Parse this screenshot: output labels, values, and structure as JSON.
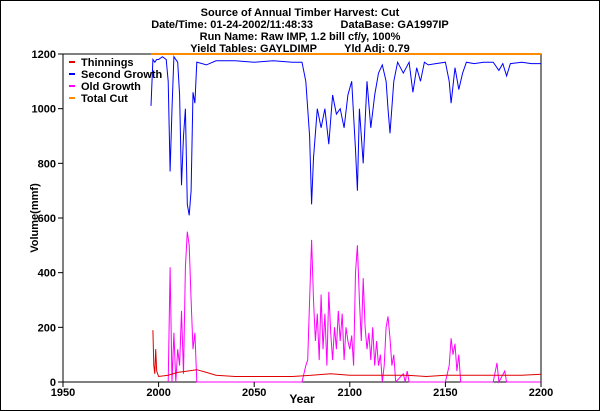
{
  "header": {
    "title": "Source of Annual Timber Harvest: Cut",
    "line2": "Date/Time: 01-24-2002/11:48:33         DataBase: GA1997IP",
    "line3": "Run Name: Raw IMP, 1.2 bill cf/y, 100%",
    "line4": "Yield Tables: GAYLDIMP         Yld Adj: 0.79"
  },
  "colors": {
    "background": "#ffffff",
    "thinnings": "#e00000",
    "second_growth": "#0000ff",
    "old_growth": "#ff00ff",
    "total_cut": "#ff8c00"
  },
  "chart_data": {
    "type": "line",
    "title": "Source of Annual Timber Harvest: Cut",
    "xlabel": "Year",
    "ylabel": "Volume(mmf)",
    "xlim": [
      1950,
      2200
    ],
    "ylim": [
      0,
      1200
    ],
    "xticks": [
      1950,
      2000,
      2050,
      2100,
      2150,
      2200
    ],
    "yticks": [
      0,
      200,
      400,
      600,
      800,
      1000,
      1200
    ],
    "grid": false,
    "legend_position": "top-left",
    "series": [
      {
        "name": "Thinnings",
        "color": "#e00000",
        "points": [
          [
            1997,
            190
          ],
          [
            1997.5,
            60
          ],
          [
            1998,
            30
          ],
          [
            1998.5,
            120
          ],
          [
            1999,
            40
          ],
          [
            2000,
            20
          ],
          [
            2005,
            25
          ],
          [
            2010,
            35
          ],
          [
            2015,
            40
          ],
          [
            2020,
            45
          ],
          [
            2025,
            35
          ],
          [
            2030,
            25
          ],
          [
            2040,
            20
          ],
          [
            2050,
            20
          ],
          [
            2060,
            20
          ],
          [
            2070,
            20
          ],
          [
            2080,
            25
          ],
          [
            2090,
            30
          ],
          [
            2100,
            25
          ],
          [
            2110,
            25
          ],
          [
            2120,
            25
          ],
          [
            2130,
            25
          ],
          [
            2140,
            20
          ],
          [
            2150,
            25
          ],
          [
            2160,
            25
          ],
          [
            2170,
            25
          ],
          [
            2180,
            25
          ],
          [
            2190,
            25
          ],
          [
            2200,
            28
          ]
        ]
      },
      {
        "name": "Second Growth",
        "color": "#0000ff",
        "points": [
          [
            1996,
            1010
          ],
          [
            1997,
            1180
          ],
          [
            1998,
            1170
          ],
          [
            1999,
            1180
          ],
          [
            2000,
            1180
          ],
          [
            2002,
            1190
          ],
          [
            2004,
            1180
          ],
          [
            2005,
            1100
          ],
          [
            2006,
            770
          ],
          [
            2007,
            1000
          ],
          [
            2008,
            1190
          ],
          [
            2010,
            1170
          ],
          [
            2011,
            1050
          ],
          [
            2012,
            720
          ],
          [
            2013,
            900
          ],
          [
            2014,
            1000
          ],
          [
            2015,
            650
          ],
          [
            2016,
            610
          ],
          [
            2017,
            700
          ],
          [
            2018,
            1060
          ],
          [
            2019,
            1020
          ],
          [
            2020,
            1170
          ],
          [
            2025,
            1160
          ],
          [
            2030,
            1175
          ],
          [
            2040,
            1175
          ],
          [
            2050,
            1170
          ],
          [
            2060,
            1175
          ],
          [
            2070,
            1170
          ],
          [
            2075,
            1170
          ],
          [
            2077,
            1100
          ],
          [
            2079,
            900
          ],
          [
            2080,
            650
          ],
          [
            2081,
            820
          ],
          [
            2083,
            1000
          ],
          [
            2085,
            930
          ],
          [
            2087,
            1000
          ],
          [
            2089,
            870
          ],
          [
            2091,
            1050
          ],
          [
            2093,
            980
          ],
          [
            2095,
            1000
          ],
          [
            2097,
            930
          ],
          [
            2099,
            1050
          ],
          [
            2101,
            1100
          ],
          [
            2103,
            850
          ],
          [
            2104,
            700
          ],
          [
            2105,
            1000
          ],
          [
            2107,
            800
          ],
          [
            2109,
            1100
          ],
          [
            2111,
            930
          ],
          [
            2113,
            1050
          ],
          [
            2115,
            1130
          ],
          [
            2117,
            1160
          ],
          [
            2119,
            1100
          ],
          [
            2120,
            1000
          ],
          [
            2121,
            910
          ],
          [
            2123,
            1100
          ],
          [
            2125,
            1170
          ],
          [
            2128,
            1130
          ],
          [
            2131,
            1170
          ],
          [
            2133,
            1060
          ],
          [
            2135,
            1150
          ],
          [
            2137,
            1100
          ],
          [
            2139,
            1170
          ],
          [
            2141,
            1160
          ],
          [
            2145,
            1165
          ],
          [
            2150,
            1170
          ],
          [
            2152,
            1100
          ],
          [
            2153,
            1020
          ],
          [
            2155,
            1150
          ],
          [
            2157,
            1070
          ],
          [
            2159,
            1130
          ],
          [
            2161,
            1170
          ],
          [
            2165,
            1165
          ],
          [
            2170,
            1170
          ],
          [
            2175,
            1170
          ],
          [
            2178,
            1140
          ],
          [
            2180,
            1165
          ],
          [
            2182,
            1120
          ],
          [
            2184,
            1165
          ],
          [
            2190,
            1170
          ],
          [
            2195,
            1165
          ],
          [
            2200,
            1165
          ]
        ]
      },
      {
        "name": "Old Growth",
        "color": "#ff00ff",
        "points": [
          [
            2005,
            0
          ],
          [
            2006,
            420
          ],
          [
            2007,
            0
          ],
          [
            2008,
            180
          ],
          [
            2009,
            0
          ],
          [
            2010,
            120
          ],
          [
            2011,
            60
          ],
          [
            2012,
            260
          ],
          [
            2013,
            30
          ],
          [
            2014,
            420
          ],
          [
            2015,
            550
          ],
          [
            2016,
            500
          ],
          [
            2017,
            300
          ],
          [
            2018,
            120
          ],
          [
            2019,
            180
          ],
          [
            2020,
            0
          ],
          [
            2075,
            0
          ],
          [
            2077,
            60
          ],
          [
            2078,
            80
          ],
          [
            2079,
            300
          ],
          [
            2080,
            520
          ],
          [
            2081,
            300
          ],
          [
            2082,
            150
          ],
          [
            2083,
            250
          ],
          [
            2084,
            80
          ],
          [
            2085,
            320
          ],
          [
            2086,
            120
          ],
          [
            2087,
            250
          ],
          [
            2088,
            60
          ],
          [
            2089,
            330
          ],
          [
            2090,
            180
          ],
          [
            2091,
            80
          ],
          [
            2092,
            200
          ],
          [
            2093,
            120
          ],
          [
            2094,
            260
          ],
          [
            2095,
            150
          ],
          [
            2096,
            250
          ],
          [
            2097,
            80
          ],
          [
            2098,
            200
          ],
          [
            2099,
            150
          ],
          [
            2100,
            120
          ],
          [
            2101,
            170
          ],
          [
            2102,
            60
          ],
          [
            2103,
            400
          ],
          [
            2104,
            500
          ],
          [
            2105,
            300
          ],
          [
            2106,
            150
          ],
          [
            2107,
            380
          ],
          [
            2108,
            200
          ],
          [
            2109,
            120
          ],
          [
            2110,
            180
          ],
          [
            2111,
            80
          ],
          [
            2112,
            200
          ],
          [
            2113,
            60
          ],
          [
            2114,
            150
          ],
          [
            2115,
            60
          ],
          [
            2116,
            100
          ],
          [
            2117,
            0
          ],
          [
            2118,
            60
          ],
          [
            2119,
            200
          ],
          [
            2120,
            240
          ],
          [
            2121,
            160
          ],
          [
            2122,
            60
          ],
          [
            2123,
            100
          ],
          [
            2124,
            0
          ],
          [
            2128,
            30
          ],
          [
            2129,
            0
          ],
          [
            2130,
            40
          ],
          [
            2131,
            0
          ],
          [
            2150,
            0
          ],
          [
            2152,
            60
          ],
          [
            2153,
            160
          ],
          [
            2154,
            100
          ],
          [
            2155,
            140
          ],
          [
            2156,
            40
          ],
          [
            2157,
            100
          ],
          [
            2158,
            0
          ],
          [
            2175,
            0
          ],
          [
            2177,
            70
          ],
          [
            2178,
            0
          ],
          [
            2181,
            40
          ],
          [
            2182,
            0
          ],
          [
            2200,
            0
          ]
        ]
      },
      {
        "name": "Total Cut",
        "color": "#ff8c00",
        "points": [
          [
            1996,
            1200
          ],
          [
            2200,
            1200
          ]
        ]
      }
    ]
  }
}
